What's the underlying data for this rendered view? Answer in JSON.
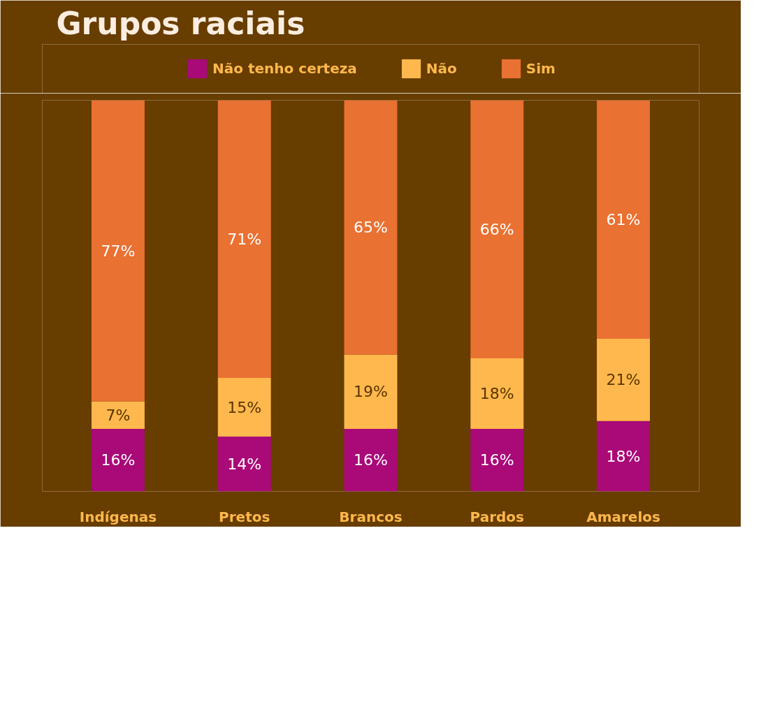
{
  "chart_data": {
    "type": "bar",
    "title": "Grupos raciais",
    "categories": [
      "Indígenas",
      "Pretos",
      "Brancos",
      "Pardos",
      "Amarelos"
    ],
    "stacked": true,
    "series": [
      {
        "name": "Não tenho certeza",
        "color": "#a90a78",
        "values": [
          16,
          14,
          16,
          16,
          18
        ],
        "value_labels": [
          "16%",
          "14%",
          "16%",
          "16%",
          "18%"
        ]
      },
      {
        "name": "Não",
        "color": "#ffb84d",
        "values": [
          7,
          15,
          19,
          18,
          21
        ],
        "value_labels": [
          "7%",
          "15%",
          "19%",
          "18%",
          "21%"
        ]
      },
      {
        "name": "Sim",
        "color": "#e97132",
        "values": [
          77,
          71,
          65,
          66,
          61
        ],
        "value_labels": [
          "77%",
          "71%",
          "65%",
          "66%",
          "61%"
        ]
      }
    ],
    "legend": "top",
    "grid": false,
    "tick_labels": "x"
  }
}
